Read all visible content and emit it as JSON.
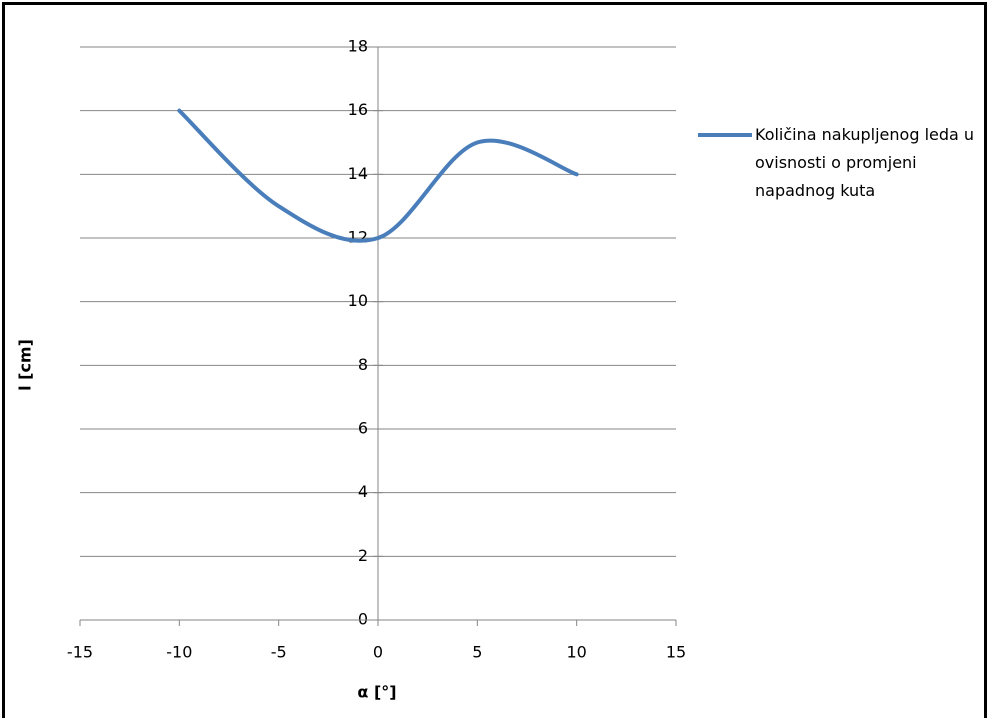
{
  "chart_data": {
    "type": "line",
    "smooth": true,
    "x_label": "α [°]",
    "y_label": "l [cm]",
    "x": [
      -10,
      -5,
      0,
      5,
      10
    ],
    "series": [
      {
        "name": "Količina nakupljenog leda u ovisnosti o promjeni napadnog kuta",
        "color": "#4a7ebb",
        "values": [
          16,
          13,
          12,
          15,
          14
        ]
      }
    ],
    "xlim": [
      -15,
      15
    ],
    "xticks": [
      -15,
      -10,
      -5,
      0,
      5,
      10,
      15
    ],
    "ylim": [
      0,
      18
    ],
    "yticks": [
      0,
      2,
      4,
      6,
      8,
      10,
      12,
      14,
      16,
      18
    ],
    "grid": true,
    "legend": "right"
  }
}
